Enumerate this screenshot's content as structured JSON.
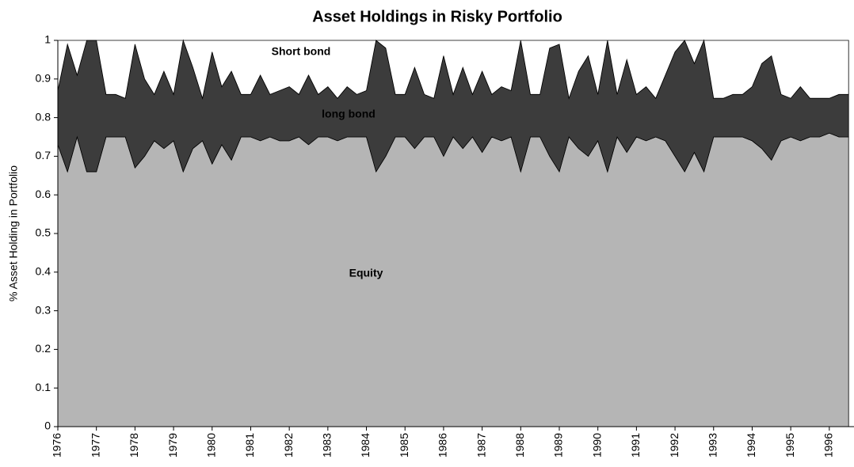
{
  "chart_data": {
    "type": "stacked_area",
    "title": "Asset Holdings in Risky Portfolio",
    "y_label": "% Asset Holding in Portfolio",
    "x": [
      1976,
      1976.25,
      1976.5,
      1976.75,
      1977,
      1977.25,
      1977.5,
      1977.75,
      1978,
      1978.25,
      1978.5,
      1978.75,
      1979,
      1979.25,
      1979.5,
      1979.75,
      1980,
      1980.25,
      1980.5,
      1980.75,
      1981,
      1981.25,
      1981.5,
      1981.75,
      1982,
      1982.25,
      1982.5,
      1982.75,
      1983,
      1983.25,
      1983.5,
      1983.75,
      1984,
      1984.25,
      1984.5,
      1984.75,
      1985,
      1985.25,
      1985.5,
      1985.75,
      1986,
      1986.25,
      1986.5,
      1986.75,
      1987,
      1987.25,
      1987.5,
      1987.75,
      1988,
      1988.25,
      1988.5,
      1988.75,
      1989,
      1989.25,
      1989.5,
      1989.75,
      1990,
      1990.25,
      1990.5,
      1990.75,
      1991,
      1991.25,
      1991.5,
      1991.75,
      1992,
      1992.25,
      1992.5,
      1992.75,
      1993,
      1993.25,
      1993.5,
      1993.75,
      1994,
      1994.25,
      1994.5,
      1994.75,
      1995,
      1995.25,
      1995.5,
      1995.75,
      1996,
      1996.25,
      1996.5
    ],
    "series": [
      {
        "name": "Equity",
        "color": "#b5b5b5",
        "values": [
          0.73,
          0.66,
          0.75,
          0.66,
          0.66,
          0.75,
          0.75,
          0.75,
          0.67,
          0.7,
          0.74,
          0.72,
          0.74,
          0.66,
          0.72,
          0.74,
          0.68,
          0.73,
          0.69,
          0.75,
          0.75,
          0.74,
          0.75,
          0.74,
          0.74,
          0.75,
          0.73,
          0.75,
          0.75,
          0.74,
          0.75,
          0.75,
          0.75,
          0.66,
          0.7,
          0.75,
          0.75,
          0.72,
          0.75,
          0.75,
          0.7,
          0.75,
          0.72,
          0.75,
          0.71,
          0.75,
          0.74,
          0.75,
          0.66,
          0.75,
          0.75,
          0.7,
          0.66,
          0.75,
          0.72,
          0.7,
          0.74,
          0.66,
          0.75,
          0.71,
          0.75,
          0.74,
          0.75,
          0.74,
          0.7,
          0.66,
          0.71,
          0.66,
          0.75,
          0.75,
          0.75,
          0.75,
          0.74,
          0.72,
          0.69,
          0.74,
          0.75,
          0.74,
          0.75,
          0.75,
          0.76,
          0.75,
          0.75
        ]
      },
      {
        "name": "long bond",
        "color": "#3c3c3c",
        "values": [
          0.14,
          0.33,
          0.16,
          0.34,
          0.34,
          0.11,
          0.11,
          0.1,
          0.32,
          0.2,
          0.12,
          0.2,
          0.12,
          0.34,
          0.21,
          0.11,
          0.29,
          0.15,
          0.23,
          0.11,
          0.11,
          0.17,
          0.11,
          0.13,
          0.14,
          0.11,
          0.18,
          0.11,
          0.13,
          0.11,
          0.13,
          0.11,
          0.12,
          0.34,
          0.28,
          0.11,
          0.11,
          0.21,
          0.11,
          0.1,
          0.26,
          0.11,
          0.21,
          0.11,
          0.21,
          0.11,
          0.14,
          0.12,
          0.34,
          0.11,
          0.11,
          0.28,
          0.33,
          0.1,
          0.2,
          0.26,
          0.12,
          0.34,
          0.11,
          0.24,
          0.11,
          0.14,
          0.1,
          0.17,
          0.27,
          0.34,
          0.23,
          0.34,
          0.1,
          0.1,
          0.11,
          0.11,
          0.14,
          0.22,
          0.27,
          0.12,
          0.1,
          0.14,
          0.1,
          0.1,
          0.09,
          0.11,
          0.11
        ]
      },
      {
        "name": "Short bond",
        "color": "#ffffff",
        "values": [
          0.13,
          0.01,
          0.09,
          0,
          0,
          0.14,
          0.14,
          0.15,
          0.01,
          0.1,
          0.14,
          0.08,
          0.14,
          0,
          0.07,
          0.15,
          0.03,
          0.12,
          0.08,
          0.14,
          0.14,
          0.09,
          0.14,
          0.13,
          0.12,
          0.14,
          0.09,
          0.14,
          0.12,
          0.15,
          0.12,
          0.14,
          0.13,
          0,
          0.02,
          0.14,
          0.14,
          0.07,
          0.14,
          0.15,
          0.04,
          0.14,
          0.07,
          0.14,
          0.08,
          0.14,
          0.12,
          0.13,
          0,
          0.14,
          0.14,
          0.02,
          0.01,
          0.15,
          0.08,
          0.04,
          0.14,
          0,
          0.14,
          0.05,
          0.14,
          0.12,
          0.15,
          0.09,
          0.03,
          0,
          0.06,
          0,
          0.15,
          0.15,
          0.14,
          0.14,
          0.12,
          0.06,
          0.04,
          0.14,
          0.15,
          0.12,
          0.15,
          0.15,
          0.15,
          0.14,
          0.14
        ]
      }
    ],
    "xlim": [
      1976,
      1996.64
    ],
    "xticks": [
      1976,
      1977,
      1978,
      1979,
      1980,
      1981,
      1982,
      1983,
      1984,
      1985,
      1986,
      1987,
      1988,
      1989,
      1990,
      1991,
      1992,
      1993,
      1994,
      1995,
      1996
    ],
    "ylim": [
      0,
      1
    ],
    "yticks": [
      0,
      0.1,
      0.2,
      0.3,
      0.4,
      0.5,
      0.6,
      0.7,
      0.8,
      0.9,
      1
    ]
  }
}
